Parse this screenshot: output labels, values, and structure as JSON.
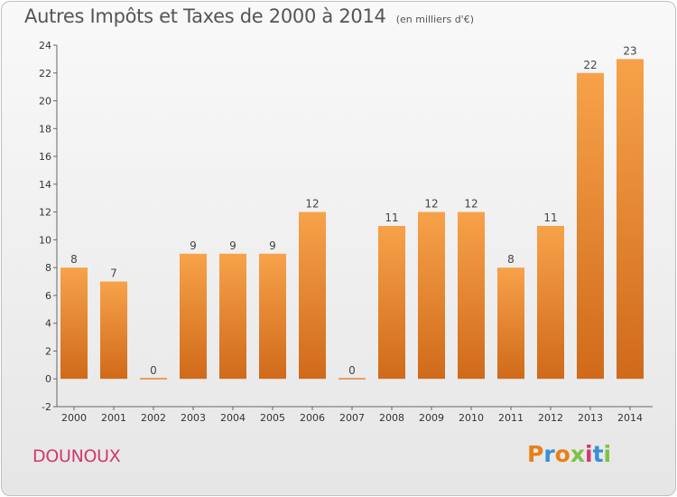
{
  "chart_data": {
    "type": "bar",
    "title": "Autres Impôts et Taxes de 2000 à 2014",
    "subtitle": "(en milliers d'€)",
    "xlabel": "",
    "ylabel": "",
    "categories": [
      "2000",
      "2001",
      "2002",
      "2003",
      "2004",
      "2005",
      "2006",
      "2007",
      "2008",
      "2009",
      "2010",
      "2011",
      "2012",
      "2013",
      "2014"
    ],
    "values": [
      8,
      7,
      0,
      9,
      9,
      9,
      12,
      0,
      11,
      12,
      12,
      8,
      11,
      22,
      23
    ],
    "ylim": [
      -2,
      24
    ],
    "yticks": [
      -2,
      0,
      2,
      4,
      6,
      8,
      10,
      12,
      14,
      16,
      18,
      20,
      22,
      24
    ],
    "grid": false,
    "legend": "none",
    "bar_color_top": "#f7a24a",
    "bar_color_bottom": "#d06a1a"
  },
  "footer": {
    "commune": "DOUNOUX",
    "logo_text": "Proxiti",
    "logo_colors": [
      "#e8801a",
      "#3a8fd6",
      "#e8801a",
      "#7cc242",
      "#d2386e",
      "#3a8fd6",
      "#7cc242"
    ]
  }
}
